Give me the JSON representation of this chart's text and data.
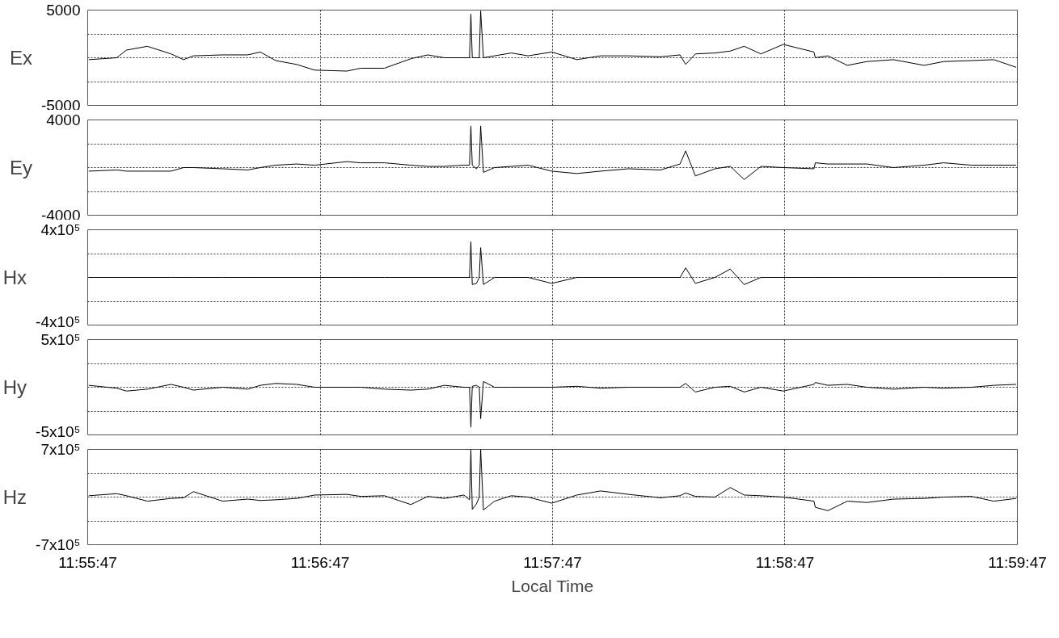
{
  "chart_data": [
    {
      "type": "line",
      "ylabel": "Ex",
      "color": "#000000",
      "grid": true,
      "tick_labels": "y",
      "xlim": [
        11.929722,
        11.996389
      ],
      "xticks": [
        {
          "value": 11.929722,
          "label": null
        },
        {
          "value": 11.946389,
          "label": null
        },
        {
          "value": 11.963056,
          "label": null
        },
        {
          "value": 11.979722,
          "label": null
        },
        {
          "value": 11.996389,
          "label": null
        }
      ],
      "ylim": [
        -5000,
        5000
      ],
      "yticks": [
        -5000,
        {
          "value": -2500,
          "label": null
        },
        {
          "value": 0,
          "label": null
        },
        {
          "value": 2500,
          "label": null
        },
        5000
      ],
      "x": [
        11.9298,
        11.9318,
        11.9325,
        11.934,
        11.9357,
        11.9366,
        11.9373,
        11.9394,
        11.9412,
        11.9421,
        11.9432,
        11.9447,
        11.946,
        11.9483,
        11.9493,
        11.951,
        11.9529,
        11.9541,
        11.9553,
        11.9567,
        11.9571,
        11.9572,
        11.9573,
        11.9576,
        11.9578,
        11.9579,
        11.9581,
        11.9589,
        11.9601,
        11.9613,
        11.963,
        11.9648,
        11.9665,
        11.9685,
        11.9708,
        11.9722,
        11.9726,
        11.9733,
        11.9747,
        11.9758,
        11.9768,
        11.978,
        11.9796,
        11.9818,
        11.9819,
        11.9828,
        11.9842,
        11.9856,
        11.9875,
        11.9897,
        11.9911,
        11.9931,
        11.9947,
        11.9963
      ],
      "values": [
        -200,
        0,
        800,
        1200,
        400,
        -200,
        200,
        300,
        300,
        600,
        -300,
        -700,
        -1300,
        -1400,
        -1100,
        -1100,
        -100,
        300,
        0,
        0,
        0,
        4600,
        0,
        0,
        0,
        4900,
        0,
        200,
        500,
        200,
        600,
        -200,
        200,
        200,
        100,
        300,
        -700,
        400,
        500,
        700,
        1200,
        400,
        1400,
        600,
        0,
        200,
        -800,
        -400,
        -200,
        -800,
        -400,
        -300,
        -200,
        -1000
      ]
    },
    {
      "type": "line",
      "ylabel": "Ey",
      "color": "#000000",
      "grid": true,
      "tick_labels": "y",
      "xlim": [
        11.929722,
        11.996389
      ],
      "xticks": [
        {
          "value": 11.929722,
          "label": null
        },
        {
          "value": 11.946389,
          "label": null
        },
        {
          "value": 11.963056,
          "label": null
        },
        {
          "value": 11.979722,
          "label": null
        },
        {
          "value": 11.996389,
          "label": null
        }
      ],
      "ylim": [
        -4000,
        4000
      ],
      "yticks": [
        -4000,
        {
          "value": -2000,
          "label": null
        },
        {
          "value": 0,
          "label": null
        },
        {
          "value": 2000,
          "label": null
        },
        4000
      ],
      "x": [
        11.9298,
        11.9318,
        11.9325,
        11.934,
        11.9357,
        11.9366,
        11.9373,
        11.9394,
        11.9412,
        11.9421,
        11.9432,
        11.9447,
        11.946,
        11.9483,
        11.9493,
        11.951,
        11.9529,
        11.9541,
        11.9553,
        11.9567,
        11.9571,
        11.9572,
        11.9573,
        11.9576,
        11.9578,
        11.9579,
        11.9581,
        11.9589,
        11.9601,
        11.9613,
        11.963,
        11.9648,
        11.9665,
        11.9685,
        11.9708,
        11.9722,
        11.9726,
        11.9733,
        11.9747,
        11.9758,
        11.9768,
        11.978,
        11.9796,
        11.9818,
        11.9819,
        11.9828,
        11.9842,
        11.9856,
        11.9875,
        11.9897,
        11.9911,
        11.9931,
        11.9947,
        11.9963
      ],
      "values": [
        -300,
        -200,
        -300,
        -300,
        -300,
        0,
        0,
        -100,
        -200,
        0,
        200,
        300,
        200,
        500,
        400,
        400,
        200,
        100,
        100,
        200,
        200,
        3500,
        200,
        -100,
        200,
        3500,
        -400,
        0,
        100,
        200,
        -300,
        -500,
        -300,
        -100,
        -200,
        300,
        1400,
        -700,
        -100,
        100,
        -1000,
        100,
        0,
        -100,
        400,
        300,
        300,
        300,
        0,
        200,
        400,
        200,
        200,
        200
      ]
    },
    {
      "type": "line",
      "ylabel": "Hx",
      "color": "#000000",
      "grid": true,
      "tick_labels": "y",
      "xlim": [
        11.929722,
        11.996389
      ],
      "xticks": [
        {
          "value": 11.929722,
          "label": null
        },
        {
          "value": 11.946389,
          "label": null
        },
        {
          "value": 11.963056,
          "label": null
        },
        {
          "value": 11.979722,
          "label": null
        },
        {
          "value": 11.996389,
          "label": null
        }
      ],
      "ylim": [
        -400000,
        400000
      ],
      "yticks": [
        {
          "value": -400000,
          "label": "-4x10⁵"
        },
        {
          "value": -200000,
          "label": null
        },
        {
          "value": 0,
          "label": null
        },
        {
          "value": 200000,
          "label": null
        },
        {
          "value": 400000,
          "label": "4x10⁵"
        }
      ],
      "x": [
        11.9298,
        11.9318,
        11.9325,
        11.934,
        11.9357,
        11.9366,
        11.9373,
        11.9394,
        11.9412,
        11.9421,
        11.9432,
        11.9447,
        11.946,
        11.9483,
        11.9493,
        11.951,
        11.9529,
        11.9541,
        11.9553,
        11.9567,
        11.9571,
        11.9572,
        11.9573,
        11.9576,
        11.9578,
        11.9579,
        11.9581,
        11.9589,
        11.9601,
        11.9613,
        11.963,
        11.9648,
        11.9665,
        11.9685,
        11.9708,
        11.9722,
        11.9726,
        11.9733,
        11.9747,
        11.9758,
        11.9768,
        11.978,
        11.9796,
        11.9818,
        11.9819,
        11.9828,
        11.9842,
        11.9856,
        11.9875,
        11.9897,
        11.9911,
        11.9931,
        11.9947,
        11.9963
      ],
      "values": [
        0,
        0,
        0,
        0,
        0,
        0,
        0,
        0,
        0,
        0,
        0,
        0,
        0,
        0,
        0,
        0,
        0,
        0,
        0,
        0,
        0,
        300000,
        -60000,
        -50000,
        0,
        250000,
        -60000,
        0,
        0,
        0,
        -50000,
        0,
        0,
        0,
        0,
        0,
        80000,
        -50000,
        0,
        70000,
        -60000,
        0,
        0,
        0,
        0,
        0,
        0,
        0,
        0,
        0,
        0,
        0,
        0,
        0
      ]
    },
    {
      "type": "line",
      "ylabel": "Hy",
      "color": "#000000",
      "grid": true,
      "tick_labels": "y",
      "xlim": [
        11.929722,
        11.996389
      ],
      "xticks": [
        {
          "value": 11.929722,
          "label": null
        },
        {
          "value": 11.946389,
          "label": null
        },
        {
          "value": 11.963056,
          "label": null
        },
        {
          "value": 11.979722,
          "label": null
        },
        {
          "value": 11.996389,
          "label": null
        }
      ],
      "ylim": [
        -500000,
        500000
      ],
      "yticks": [
        {
          "value": -500000,
          "label": "-5x10⁵"
        },
        {
          "value": -250000,
          "label": null
        },
        {
          "value": 0,
          "label": null
        },
        {
          "value": 250000,
          "label": null
        },
        {
          "value": 500000,
          "label": "5x10⁵"
        }
      ],
      "x": [
        11.9298,
        11.9318,
        11.9325,
        11.934,
        11.9357,
        11.9366,
        11.9373,
        11.9394,
        11.9412,
        11.9421,
        11.9432,
        11.9447,
        11.946,
        11.9483,
        11.9493,
        11.951,
        11.9529,
        11.9541,
        11.9553,
        11.9567,
        11.9571,
        11.9572,
        11.9573,
        11.9576,
        11.9578,
        11.9579,
        11.9581,
        11.9589,
        11.9601,
        11.9613,
        11.963,
        11.9648,
        11.9665,
        11.9685,
        11.9708,
        11.9722,
        11.9726,
        11.9733,
        11.9747,
        11.9758,
        11.9768,
        11.978,
        11.9796,
        11.9818,
        11.9819,
        11.9828,
        11.9842,
        11.9856,
        11.9875,
        11.9897,
        11.9911,
        11.9931,
        11.9947,
        11.9963
      ],
      "values": [
        20000,
        -10000,
        -40000,
        -20000,
        30000,
        0,
        -30000,
        0,
        -20000,
        20000,
        40000,
        30000,
        0,
        0,
        0,
        -20000,
        -30000,
        -20000,
        20000,
        0,
        0,
        -420000,
        10000,
        20000,
        0,
        -330000,
        60000,
        0,
        0,
        0,
        0,
        10000,
        -10000,
        0,
        0,
        0,
        40000,
        -50000,
        0,
        10000,
        -50000,
        0,
        -40000,
        30000,
        50000,
        20000,
        30000,
        0,
        -20000,
        0,
        -10000,
        0,
        20000,
        30000
      ]
    },
    {
      "type": "line",
      "ylabel": "Hz",
      "xlabel": "Local Time",
      "color": "#000000",
      "grid": true,
      "xlim": [
        11.929722,
        11.996389
      ],
      "xticks": [
        {
          "value": 11.929722,
          "label": "11:55:47"
        },
        {
          "value": 11.946389,
          "label": "11:56:47"
        },
        {
          "value": 11.963056,
          "label": "11:57:47"
        },
        {
          "value": 11.979722,
          "label": "11:58:47"
        },
        {
          "value": 11.996389,
          "label": "11:59:47"
        }
      ],
      "ylim": [
        -700000,
        700000
      ],
      "yticks": [
        {
          "value": -700000,
          "label": "-7x10⁵"
        },
        {
          "value": -350000,
          "label": null
        },
        {
          "value": 0,
          "label": null
        },
        {
          "value": 350000,
          "label": null
        },
        {
          "value": 700000,
          "label": "7x10⁵"
        }
      ],
      "x": [
        11.9298,
        11.9318,
        11.9325,
        11.934,
        11.9357,
        11.9366,
        11.9373,
        11.9394,
        11.9412,
        11.9421,
        11.9432,
        11.9447,
        11.946,
        11.9483,
        11.9493,
        11.951,
        11.9529,
        11.9541,
        11.9553,
        11.9567,
        11.9571,
        11.9572,
        11.9573,
        11.9576,
        11.9578,
        11.9579,
        11.9581,
        11.9589,
        11.9601,
        11.9613,
        11.963,
        11.9648,
        11.9665,
        11.9685,
        11.9708,
        11.9722,
        11.9726,
        11.9733,
        11.9747,
        11.9758,
        11.9768,
        11.978,
        11.9796,
        11.9818,
        11.9819,
        11.9828,
        11.9842,
        11.9856,
        11.9875,
        11.9897,
        11.9911,
        11.9931,
        11.9947,
        11.9963
      ],
      "values": [
        20000,
        50000,
        20000,
        -60000,
        -20000,
        -10000,
        80000,
        -60000,
        -30000,
        -50000,
        -40000,
        -20000,
        30000,
        40000,
        10000,
        20000,
        -110000,
        10000,
        -20000,
        30000,
        -40000,
        700000,
        -180000,
        -100000,
        0,
        700000,
        -190000,
        -60000,
        20000,
        0,
        -90000,
        30000,
        90000,
        40000,
        -10000,
        20000,
        60000,
        10000,
        0,
        140000,
        30000,
        20000,
        0,
        -60000,
        -150000,
        -200000,
        -60000,
        -80000,
        -30000,
        -20000,
        0,
        10000,
        -60000,
        -20000
      ]
    }
  ]
}
